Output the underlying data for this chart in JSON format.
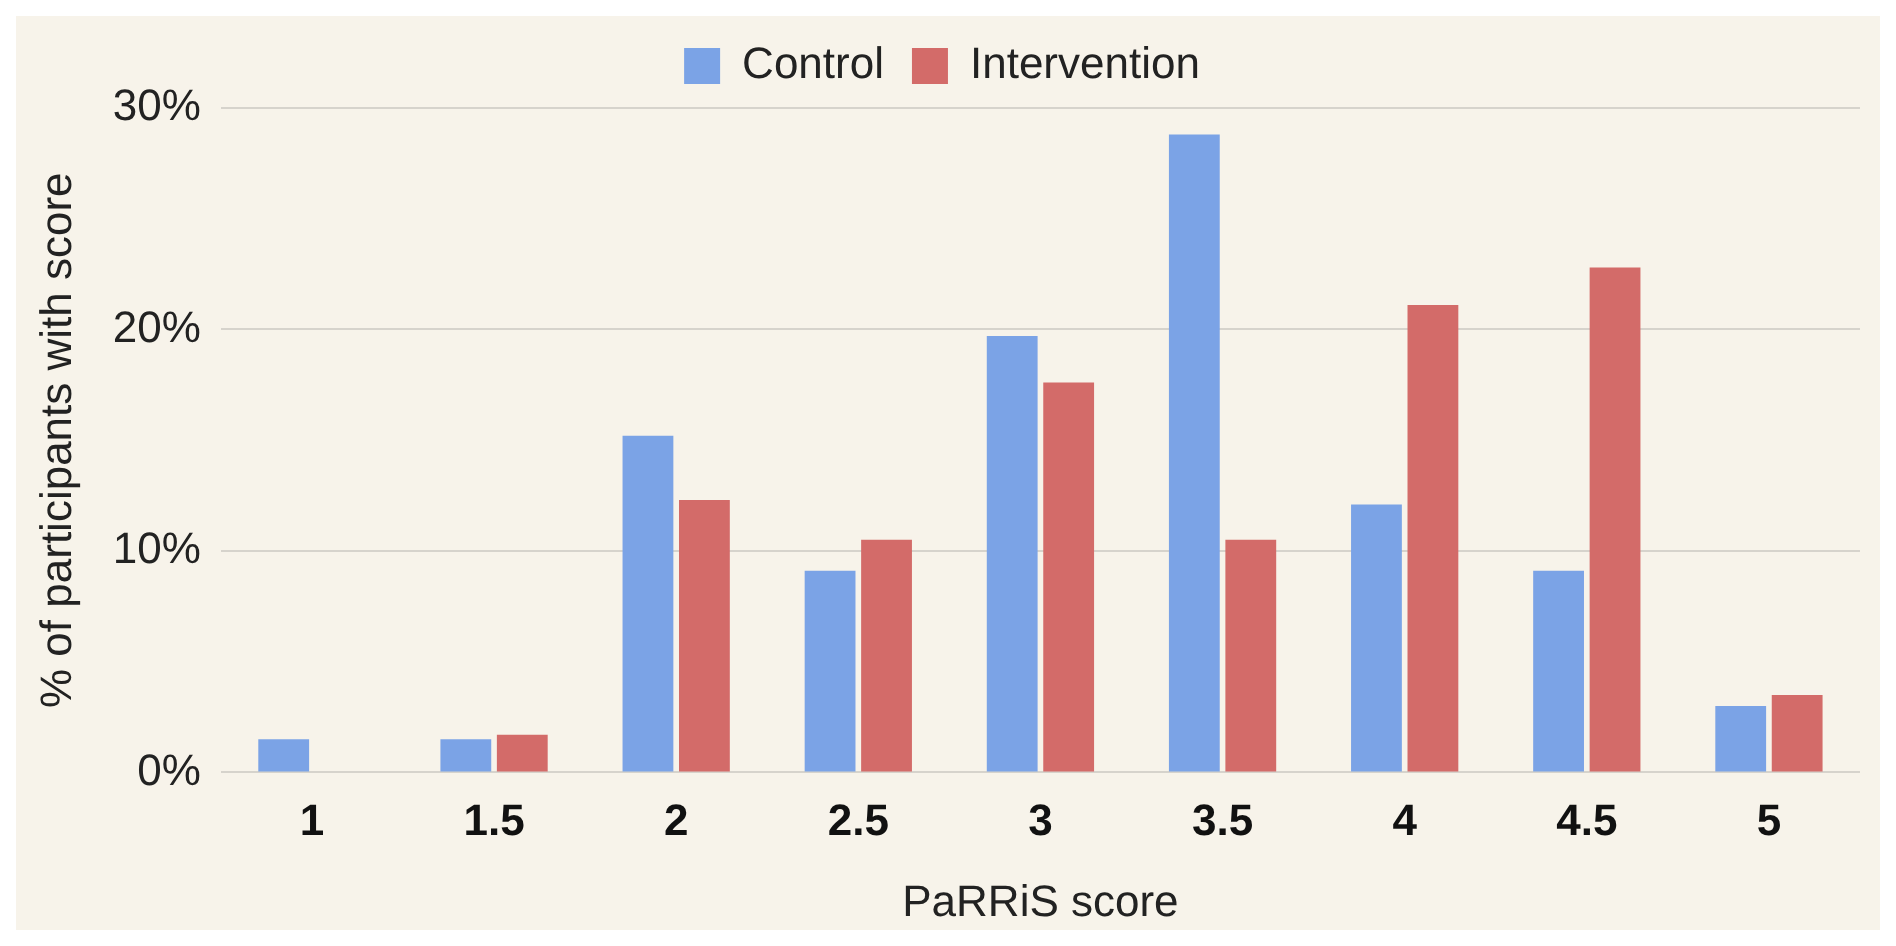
{
  "chart_data": {
    "type": "bar",
    "xlabel": "PaRRiS score",
    "ylabel": "% of participants with score",
    "categories": [
      "1",
      "1.5",
      "2",
      "2.5",
      "3",
      "3.5",
      "4",
      "4.5",
      "5"
    ],
    "series": [
      {
        "name": "Control",
        "color": "#7ba3e6",
        "values": [
          1.5,
          1.5,
          15.2,
          9.1,
          19.7,
          28.8,
          12.1,
          9.1,
          3.0
        ]
      },
      {
        "name": "Intervention",
        "color": "#d36b69",
        "values": [
          0,
          1.7,
          12.3,
          10.5,
          17.6,
          10.5,
          21.1,
          22.8,
          3.5
        ]
      }
    ],
    "ylim": [
      0,
      30
    ],
    "yticks": [
      {
        "value": 0,
        "label": "0%"
      },
      {
        "value": 10,
        "label": "10%"
      },
      {
        "value": 20,
        "label": "20%"
      },
      {
        "value": 30,
        "label": "30%"
      }
    ],
    "grid": "y",
    "legend": "top"
  }
}
